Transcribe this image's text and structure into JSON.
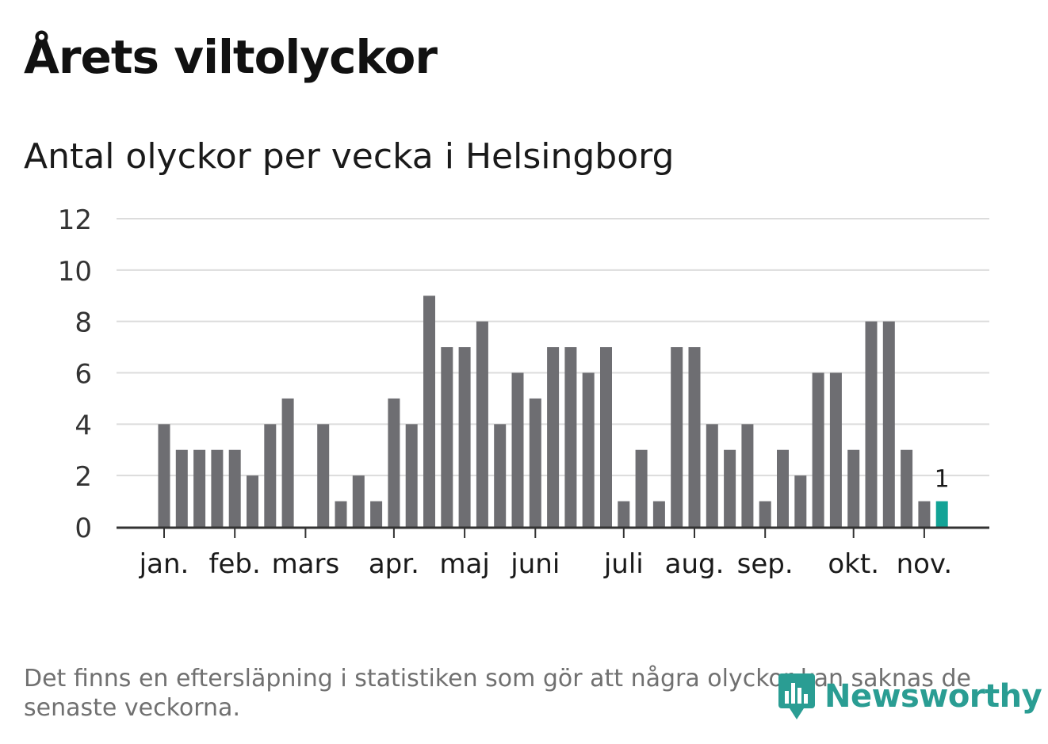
{
  "title": "Årets viltolyckor",
  "subtitle": "Antal olyckor per vecka i Helsingborg",
  "footnote": "Det finns en eftersläpning i statistiken som gör att några olyckor kan saknas de senaste veckorna.",
  "brand": {
    "name": "Newsworthy",
    "icon": "newsworthy-logo-icon",
    "color": "#2a9d93"
  },
  "colors": {
    "bar": "#6e6e72",
    "highlight": "#12a396",
    "grid": "#dcdcdc",
    "axis": "#333333"
  },
  "chart_data": {
    "type": "bar",
    "title": "Antal olyckor per vecka i Helsingborg",
    "xlabel": "",
    "ylabel": "",
    "ylim": [
      0,
      12
    ],
    "yticks": [
      "0",
      "2",
      "4",
      "6",
      "8",
      "10",
      "12"
    ],
    "grid": true,
    "month_ticks": [
      {
        "label": "jan.",
        "week": 1
      },
      {
        "label": "feb.",
        "week": 5
      },
      {
        "label": "mars",
        "week": 9
      },
      {
        "label": "apr.",
        "week": 14
      },
      {
        "label": "maj",
        "week": 18
      },
      {
        "label": "juni",
        "week": 22
      },
      {
        "label": "juli",
        "week": 27
      },
      {
        "label": "aug.",
        "week": 31
      },
      {
        "label": "sep.",
        "week": 35
      },
      {
        "label": "okt.",
        "week": 40
      },
      {
        "label": "nov.",
        "week": 44
      }
    ],
    "values": [
      4,
      3,
      3,
      3,
      3,
      2,
      4,
      5,
      0,
      4,
      1,
      2,
      1,
      5,
      4,
      9,
      7,
      7,
      8,
      4,
      6,
      5,
      7,
      7,
      6,
      7,
      1,
      3,
      1,
      7,
      7,
      4,
      3,
      4,
      1,
      3,
      2,
      6,
      6,
      3,
      8,
      8,
      3,
      1,
      1
    ],
    "highlight_index": 44,
    "highlight_label": "1"
  }
}
